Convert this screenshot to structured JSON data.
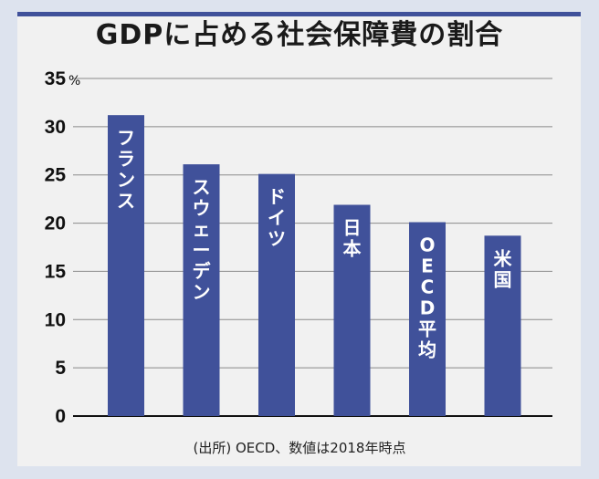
{
  "chart_data": {
    "type": "bar",
    "title": "GDPに占める社会保障費の割合",
    "categories": [
      "フランス",
      "スウェーデン",
      "ドイツ",
      "日本",
      "OECD平均",
      "米国"
    ],
    "values": [
      31.2,
      26.1,
      25.1,
      21.9,
      20.1,
      18.7
    ],
    "yticks": [
      0,
      5,
      10,
      15,
      20,
      25,
      30,
      35
    ],
    "ylim": [
      0,
      35
    ],
    "ylabel_unit": "%",
    "xlabel": "",
    "grid": true,
    "bar_color": "#40519a",
    "source": "(出所) OECD、数値は2018年時点"
  }
}
